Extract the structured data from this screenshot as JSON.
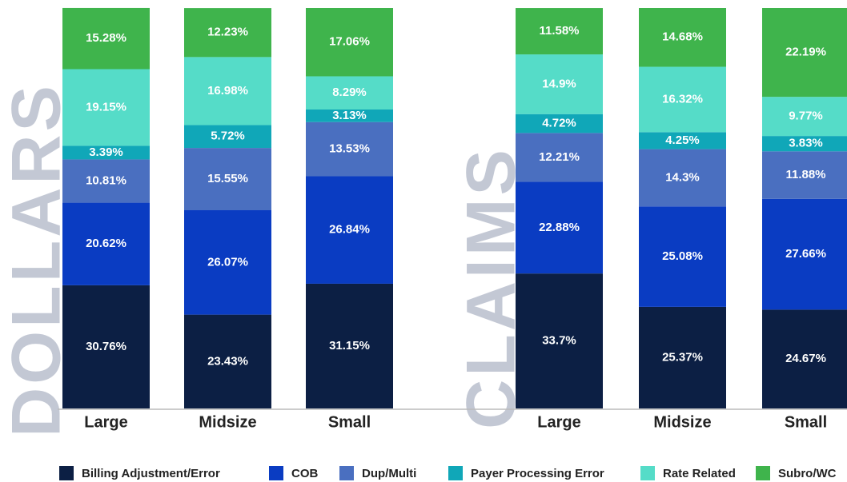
{
  "chart_data": {
    "type": "bar",
    "stacked": true,
    "group_labels": [
      "DOLLARS",
      "CLAIMS"
    ],
    "categories": [
      "Large",
      "Midsize",
      "Small",
      "Large",
      "Midsize",
      "Small"
    ],
    "ylim": [
      0,
      100
    ],
    "series": [
      {
        "name": "Billing Adjustment/Error",
        "color": "#0c1f44",
        "values": [
          30.76,
          23.43,
          31.15,
          33.7,
          25.37,
          24.67
        ],
        "value_labels": [
          "30.76%",
          "23.43%",
          "31.15%",
          "33.7%",
          "25.37%",
          "24.67%"
        ]
      },
      {
        "name": "COB",
        "color": "#0a3cc2",
        "values": [
          20.62,
          26.07,
          26.84,
          22.88,
          25.08,
          27.66
        ],
        "value_labels": [
          "20.62%",
          "26.07%",
          "26.84%",
          "22.88%",
          "25.08%",
          "27.66%"
        ]
      },
      {
        "name": "Dup/Multi",
        "color": "#4a6fc0",
        "values": [
          10.81,
          15.55,
          13.53,
          12.21,
          14.3,
          11.88
        ],
        "value_labels": [
          "10.81%",
          "15.55%",
          "13.53%",
          "12.21%",
          "14.3%",
          "11.88%"
        ]
      },
      {
        "name": "Payer Processing Error",
        "color": "#10a7b8",
        "values": [
          3.39,
          5.72,
          3.13,
          4.72,
          4.25,
          3.83
        ],
        "value_labels": [
          "3.39%",
          "5.72%",
          "3.13%",
          "4.72%",
          "4.25%",
          "3.83%"
        ]
      },
      {
        "name": "Rate Related",
        "color": "#55dcc8",
        "values": [
          19.15,
          16.98,
          8.29,
          14.9,
          16.32,
          9.77
        ],
        "value_labels": [
          "19.15%",
          "16.98%",
          "8.29%",
          "14.9%",
          "16.32%",
          "9.77%"
        ]
      },
      {
        "name": "Subro/WC",
        "color": "#3fb44c",
        "values": [
          15.28,
          12.23,
          17.06,
          11.58,
          14.68,
          22.19
        ],
        "value_labels": [
          "15.28%",
          "12.23%",
          "17.06%",
          "11.58%",
          "14.68%",
          "22.19%"
        ]
      }
    ]
  }
}
